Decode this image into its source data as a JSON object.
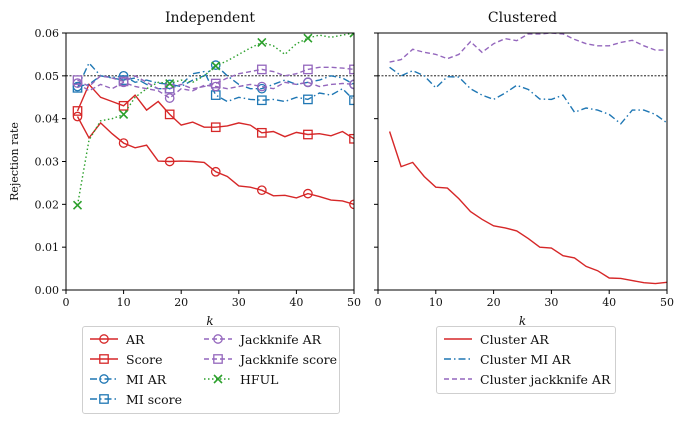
{
  "ylabel": "Rejection rate",
  "xlabel": "k",
  "colors": {
    "red": "#d62728",
    "blue": "#1f77b4",
    "purple": "#9467bd",
    "green": "#2ca02c",
    "ref": "#000000"
  },
  "chart_data": [
    {
      "type": "line",
      "title": "Independent",
      "xlabel": "k",
      "ylabel": "Rejection rate",
      "xlim": [
        0,
        50
      ],
      "ylim": [
        0,
        0.06
      ],
      "xticks": [
        0,
        10,
        20,
        30,
        40,
        50
      ],
      "yticks": [
        0.0,
        0.01,
        0.02,
        0.03,
        0.04,
        0.05,
        0.06
      ],
      "ytick_labels": [
        "0.00",
        "0.01",
        "0.02",
        "0.03",
        "0.04",
        "0.05",
        "0.06"
      ],
      "reference_line": 0.05,
      "legend_position": "below",
      "x": [
        2,
        4,
        6,
        8,
        10,
        12,
        14,
        16,
        18,
        20,
        22,
        24,
        26,
        28,
        30,
        32,
        34,
        36,
        38,
        40,
        42,
        44,
        46,
        48,
        50
      ],
      "series": [
        {
          "name": "AR",
          "color": "#d62728",
          "style": "solid",
          "marker": "circle",
          "values": [
            0.0405,
            0.0355,
            0.039,
            0.0365,
            0.0343,
            0.0332,
            0.0338,
            0.0301,
            0.03,
            0.0301,
            0.03,
            0.0298,
            0.0276,
            0.0265,
            0.0243,
            0.024,
            0.0233,
            0.022,
            0.0221,
            0.0215,
            0.0225,
            0.0218,
            0.021,
            0.0208,
            0.02
          ]
        },
        {
          "name": "Score",
          "color": "#d62728",
          "style": "solid",
          "marker": "square",
          "values": [
            0.0418,
            0.048,
            0.045,
            0.044,
            0.043,
            0.0455,
            0.042,
            0.044,
            0.041,
            0.0385,
            0.0392,
            0.038,
            0.038,
            0.0383,
            0.039,
            0.0385,
            0.0367,
            0.037,
            0.0358,
            0.0368,
            0.0363,
            0.0365,
            0.036,
            0.037,
            0.0353
          ]
        },
        {
          "name": "MI AR",
          "color": "#1f77b4",
          "style": "dashdot",
          "marker": "circle",
          "values": [
            0.0475,
            0.048,
            0.05,
            0.0496,
            0.05,
            0.0485,
            0.049,
            0.0483,
            0.048,
            0.0475,
            0.049,
            0.05,
            0.0525,
            0.05,
            0.048,
            0.047,
            0.047,
            0.048,
            0.049,
            0.048,
            0.0485,
            0.049,
            0.05,
            0.0495,
            0.048
          ]
        },
        {
          "name": "MI score",
          "color": "#1f77b4",
          "style": "dashdot",
          "marker": "square",
          "values": [
            0.0472,
            0.053,
            0.05,
            0.0495,
            0.049,
            0.0495,
            0.048,
            0.047,
            0.047,
            0.048,
            0.0505,
            0.051,
            0.0455,
            0.044,
            0.045,
            0.0445,
            0.0443,
            0.0445,
            0.044,
            0.045,
            0.0445,
            0.046,
            0.0455,
            0.047,
            0.0443
          ]
        },
        {
          "name": "Jackknife AR",
          "color": "#9467bd",
          "style": "dashed",
          "marker": "circle",
          "values": [
            0.0483,
            0.0465,
            0.048,
            0.047,
            0.0485,
            0.0475,
            0.047,
            0.0465,
            0.0448,
            0.047,
            0.0465,
            0.0478,
            0.0475,
            0.047,
            0.0475,
            0.048,
            0.0475,
            0.047,
            0.0485,
            0.048,
            0.0485,
            0.0475,
            0.048,
            0.0482,
            0.048
          ]
        },
        {
          "name": "Jackknife score",
          "color": "#9467bd",
          "style": "dashed",
          "marker": "square",
          "values": [
            0.049,
            0.0475,
            0.05,
            0.0495,
            0.0487,
            0.05,
            0.0485,
            0.047,
            0.047,
            0.048,
            0.047,
            0.0475,
            0.0482,
            0.0495,
            0.0505,
            0.051,
            0.0515,
            0.051,
            0.05,
            0.0505,
            0.0515,
            0.052,
            0.052,
            0.0518,
            0.0515
          ]
        },
        {
          "name": "HFUL",
          "color": "#2ca02c",
          "style": "dotted",
          "marker": "x",
          "values": [
            0.0198,
            0.035,
            0.0395,
            0.04,
            0.041,
            0.045,
            0.047,
            0.0485,
            0.0482,
            0.049,
            0.0485,
            0.05,
            0.0523,
            0.0535,
            0.055,
            0.0565,
            0.0578,
            0.057,
            0.055,
            0.0575,
            0.0588,
            0.0595,
            0.059,
            0.0595,
            0.06
          ]
        }
      ]
    },
    {
      "type": "line",
      "title": "Clustered",
      "xlabel": "k",
      "xlim": [
        0,
        50
      ],
      "ylim": [
        0,
        0.06
      ],
      "xticks": [
        0,
        10,
        20,
        30,
        40,
        50
      ],
      "reference_line": 0.05,
      "legend_position": "below",
      "x": [
        2,
        4,
        6,
        8,
        10,
        12,
        14,
        16,
        18,
        20,
        22,
        24,
        26,
        28,
        30,
        32,
        34,
        36,
        38,
        40,
        42,
        44,
        46,
        48,
        50
      ],
      "series": [
        {
          "name": "Cluster AR",
          "color": "#d62728",
          "style": "solid",
          "marker": "none",
          "values": [
            0.037,
            0.0288,
            0.0298,
            0.0265,
            0.024,
            0.0238,
            0.0213,
            0.0183,
            0.0165,
            0.015,
            0.0145,
            0.0138,
            0.012,
            0.01,
            0.0098,
            0.008,
            0.0075,
            0.0055,
            0.0045,
            0.0028,
            0.0027,
            0.0022,
            0.0017,
            0.0015,
            0.0018
          ]
        },
        {
          "name": "Cluster MI AR",
          "color": "#1f77b4",
          "style": "dashdot",
          "marker": "none",
          "values": [
            0.052,
            0.05,
            0.0512,
            0.05,
            0.0472,
            0.0498,
            0.0497,
            0.047,
            0.0455,
            0.0445,
            0.046,
            0.0478,
            0.0468,
            0.0446,
            0.0445,
            0.0455,
            0.0415,
            0.0425,
            0.042,
            0.041,
            0.0388,
            0.042,
            0.042,
            0.041,
            0.039
          ]
        },
        {
          "name": "Cluster jackknife AR",
          "color": "#9467bd",
          "style": "dashed",
          "marker": "none",
          "values": [
            0.0532,
            0.0538,
            0.0562,
            0.0555,
            0.055,
            0.054,
            0.055,
            0.058,
            0.0555,
            0.0575,
            0.0587,
            0.0582,
            0.0598,
            0.0598,
            0.06,
            0.0598,
            0.0585,
            0.0575,
            0.057,
            0.057,
            0.0578,
            0.0583,
            0.057,
            0.056,
            0.056
          ]
        }
      ]
    }
  ]
}
